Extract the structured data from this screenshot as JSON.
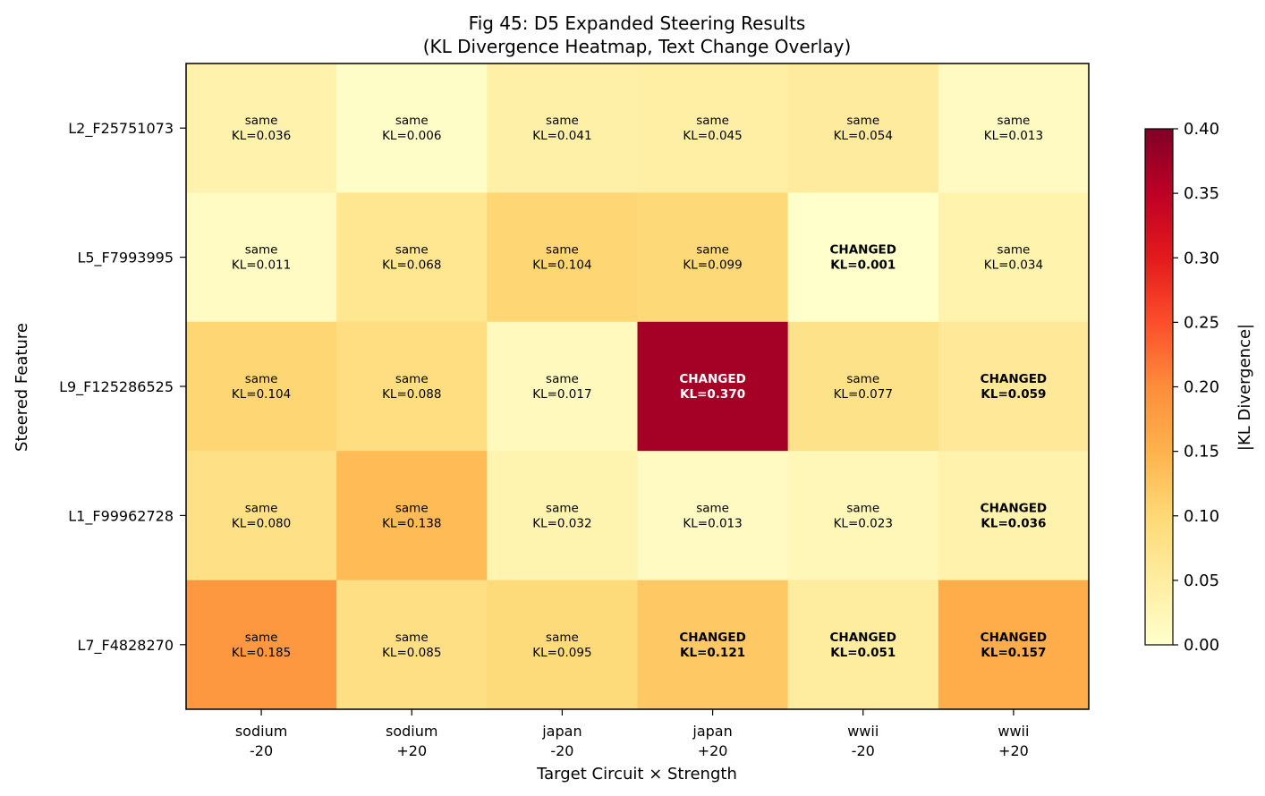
{
  "chart_data": {
    "type": "heatmap",
    "title": "Fig 45: D5 Expanded Steering Results",
    "subtitle": "(KL Divergence Heatmap, Text Change Overlay)",
    "xlabel": "Target Circuit × Strength",
    "ylabel": "Steered Feature",
    "x_categories": [
      {
        "line1": "sodium",
        "line2": "-20"
      },
      {
        "line1": "sodium",
        "line2": "+20"
      },
      {
        "line1": "japan",
        "line2": "-20"
      },
      {
        "line1": "japan",
        "line2": "+20"
      },
      {
        "line1": "wwii",
        "line2": "-20"
      },
      {
        "line1": "wwii",
        "line2": "+20"
      }
    ],
    "y_categories": [
      "L2_F25751073",
      "L5_F7993995",
      "L9_F125286525",
      "L1_F99962728",
      "L7_F4828270"
    ],
    "values": [
      [
        0.036,
        0.006,
        0.041,
        0.045,
        0.054,
        0.013
      ],
      [
        0.011,
        0.068,
        0.104,
        0.099,
        0.001,
        0.034
      ],
      [
        0.104,
        0.088,
        0.017,
        0.37,
        0.077,
        0.059
      ],
      [
        0.08,
        0.138,
        0.032,
        0.013,
        0.023,
        0.036
      ],
      [
        0.185,
        0.085,
        0.095,
        0.121,
        0.051,
        0.157
      ]
    ],
    "status": [
      [
        "same",
        "same",
        "same",
        "same",
        "same",
        "same"
      ],
      [
        "same",
        "same",
        "same",
        "same",
        "CHANGED",
        "same"
      ],
      [
        "same",
        "same",
        "same",
        "CHANGED",
        "same",
        "CHANGED"
      ],
      [
        "same",
        "same",
        "same",
        "same",
        "same",
        "CHANGED"
      ],
      [
        "same",
        "same",
        "same",
        "CHANGED",
        "CHANGED",
        "CHANGED"
      ]
    ],
    "cell_labels": [
      [
        "KL=0.036",
        "KL=0.006",
        "KL=0.041",
        "KL=0.045",
        "KL=0.054",
        "KL=0.013"
      ],
      [
        "KL=0.011",
        "KL=0.068",
        "KL=0.104",
        "KL=0.099",
        "KL=0.001",
        "KL=0.034"
      ],
      [
        "KL=0.104",
        "KL=0.088",
        "KL=0.017",
        "KL=0.370",
        "KL=0.077",
        "KL=0.059"
      ],
      [
        "KL=0.080",
        "KL=0.138",
        "KL=0.032",
        "KL=0.013",
        "KL=0.023",
        "KL=0.036"
      ],
      [
        "KL=0.185",
        "KL=0.085",
        "KL=0.095",
        "KL=0.121",
        "KL=0.051",
        "KL=0.157"
      ]
    ],
    "colorbar": {
      "label": "|KL Divergence|",
      "range": [
        0.0,
        0.4
      ],
      "tick_labels": [
        "0.00",
        "0.05",
        "0.10",
        "0.15",
        "0.20",
        "0.25",
        "0.30",
        "0.35",
        "0.40"
      ],
      "colormap": "YlOrRd"
    }
  }
}
